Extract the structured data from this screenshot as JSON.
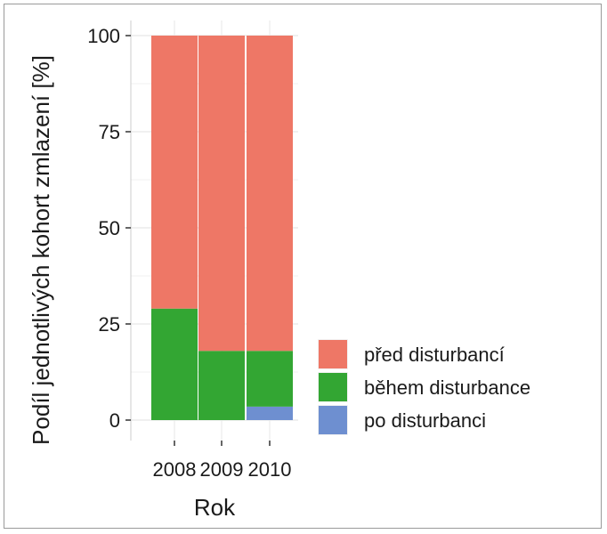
{
  "colors": {
    "pred": "#ee7766",
    "behem": "#33a633",
    "po": "#6e8fd0",
    "grid": "#ebebeb",
    "axis": "#333333"
  },
  "chart_data": {
    "type": "bar",
    "stacked": true,
    "categories": [
      "2008",
      "2009",
      "2010"
    ],
    "series": [
      {
        "name": "po disturbanci",
        "color_key": "po",
        "values": [
          0,
          0,
          3.5
        ]
      },
      {
        "name": "během disturbance",
        "color_key": "behem",
        "values": [
          29,
          18,
          14.5
        ]
      },
      {
        "name": "před disturbancí",
        "color_key": "pred",
        "values": [
          71,
          82,
          82
        ]
      }
    ],
    "xlabel": "Rok",
    "ylabel": "Podíl jednotlivých kohort zmlazení [%]",
    "ylim": [
      0,
      100
    ],
    "yticks": [
      0,
      25,
      50,
      75,
      100
    ],
    "grid": true,
    "legend_position": "right",
    "legend_order": [
      "před disturbancí",
      "během disturbance",
      "po disturbanci"
    ]
  }
}
